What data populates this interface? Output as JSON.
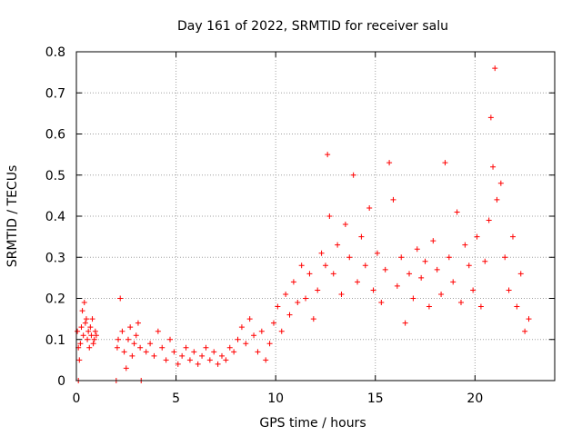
{
  "chart_data": {
    "type": "scatter",
    "title": "Day 161 of 2022, SRMTID for receiver salu",
    "xlabel": "GPS time / hours",
    "ylabel": "SRMTID / TECUs",
    "xlim": [
      0,
      24
    ],
    "ylim": [
      0,
      0.8
    ],
    "xticks": [
      0,
      5,
      10,
      15,
      20
    ],
    "xtick_labels": [
      "0",
      "5",
      "10",
      "15",
      "20"
    ],
    "yticks": [
      0,
      0.1,
      0.2,
      0.3,
      0.4,
      0.5,
      0.6,
      0.7,
      0.8
    ],
    "ytick_labels": [
      "0",
      "0.1",
      "0.2",
      "0.3",
      "0.4",
      "0.5",
      "0.6",
      "0.7",
      "0.8"
    ],
    "grid": true,
    "marker": "+",
    "marker_color": "#ff0000",
    "series": [
      {
        "name": "SRMTID",
        "x": [
          0.05,
          0.1,
          0.15,
          0.2,
          0.25,
          0.3,
          0.35,
          0.4,
          0.45,
          0.5,
          0.55,
          0.6,
          0.65,
          0.7,
          0.75,
          0.8,
          0.85,
          0.9,
          0.95,
          1.0,
          2.05,
          2.1,
          2.2,
          2.3,
          2.4,
          2.5,
          2.6,
          2.7,
          2.8,
          2.9,
          3.0,
          3.1,
          3.2,
          3.5,
          3.7,
          3.9,
          4.1,
          4.3,
          4.5,
          4.7,
          4.9,
          5.1,
          5.3,
          5.5,
          5.7,
          5.9,
          6.1,
          6.3,
          6.5,
          6.7,
          6.9,
          7.1,
          7.3,
          7.5,
          7.7,
          7.9,
          8.1,
          8.3,
          8.5,
          8.7,
          8.9,
          9.1,
          9.3,
          9.5,
          9.7,
          9.9,
          10.1,
          10.3,
          10.5,
          10.7,
          10.9,
          11.1,
          11.3,
          11.5,
          11.7,
          11.9,
          12.1,
          12.3,
          12.5,
          12.6,
          12.7,
          12.9,
          13.1,
          13.3,
          13.5,
          13.7,
          13.9,
          14.1,
          14.3,
          14.5,
          14.7,
          14.9,
          15.1,
          15.3,
          15.5,
          15.7,
          15.9,
          16.1,
          16.3,
          16.5,
          16.7,
          16.9,
          17.1,
          17.3,
          17.5,
          17.7,
          17.9,
          18.1,
          18.3,
          18.5,
          18.7,
          18.9,
          19.1,
          19.3,
          19.5,
          19.7,
          19.9,
          20.1,
          20.3,
          20.5,
          20.7,
          20.8,
          20.9,
          21.0,
          21.1,
          21.3,
          21.5,
          21.7,
          21.9,
          22.1,
          22.3,
          22.5,
          22.7
        ],
        "y": [
          0.12,
          0.08,
          0.05,
          0.09,
          0.13,
          0.17,
          0.11,
          0.19,
          0.14,
          0.15,
          0.1,
          0.12,
          0.08,
          0.13,
          0.11,
          0.15,
          0.09,
          0.1,
          0.12,
          0.11,
          0.08,
          0.1,
          0.2,
          0.12,
          0.07,
          0.03,
          0.1,
          0.13,
          0.06,
          0.09,
          0.11,
          0.14,
          0.08,
          0.07,
          0.09,
          0.06,
          0.12,
          0.08,
          0.05,
          0.1,
          0.07,
          0.04,
          0.06,
          0.08,
          0.05,
          0.07,
          0.04,
          0.06,
          0.08,
          0.05,
          0.07,
          0.04,
          0.06,
          0.05,
          0.08,
          0.07,
          0.1,
          0.13,
          0.09,
          0.15,
          0.11,
          0.07,
          0.12,
          0.05,
          0.09,
          0.14,
          0.18,
          0.12,
          0.21,
          0.16,
          0.24,
          0.19,
          0.28,
          0.2,
          0.26,
          0.15,
          0.22,
          0.31,
          0.28,
          0.55,
          0.4,
          0.26,
          0.33,
          0.21,
          0.38,
          0.3,
          0.5,
          0.24,
          0.35,
          0.28,
          0.42,
          0.22,
          0.31,
          0.19,
          0.27,
          0.53,
          0.44,
          0.23,
          0.3,
          0.14,
          0.26,
          0.2,
          0.32,
          0.25,
          0.29,
          0.18,
          0.34,
          0.27,
          0.21,
          0.53,
          0.3,
          0.24,
          0.41,
          0.19,
          0.33,
          0.28,
          0.22,
          0.35,
          0.18,
          0.29,
          0.39,
          0.64,
          0.52,
          0.76,
          0.44,
          0.48,
          0.3,
          0.22,
          0.35,
          0.18,
          0.26,
          0.12,
          0.15
        ]
      }
    ],
    "baseline_x": [
      0.1,
      2.0,
      3.25
    ],
    "baseline_y": [
      0.0,
      0.0,
      0.0
    ]
  }
}
